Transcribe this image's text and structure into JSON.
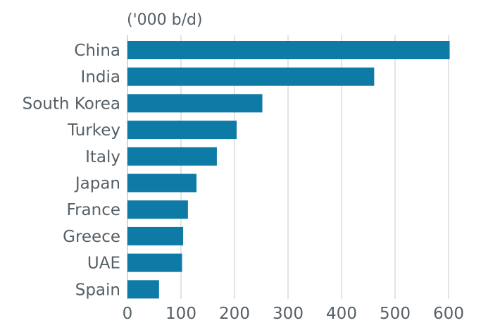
{
  "chart_data": {
    "type": "bar",
    "orientation": "horizontal",
    "unit_label": "('000 b/d)",
    "categories": [
      "China",
      "India",
      "South Korea",
      "Turkey",
      "Italy",
      "Japan",
      "France",
      "Greece",
      "UAE",
      "Spain"
    ],
    "values": [
      602,
      461,
      252,
      204,
      167,
      129,
      113,
      104,
      102,
      59
    ],
    "xlim": [
      0,
      600
    ],
    "xticks": [
      "0",
      "100",
      "200",
      "300",
      "400",
      "500",
      "600"
    ],
    "grid": true,
    "bar_color": "#0e7aa6",
    "grid_color": "#c8c8c8",
    "text_color": "#555f66"
  }
}
